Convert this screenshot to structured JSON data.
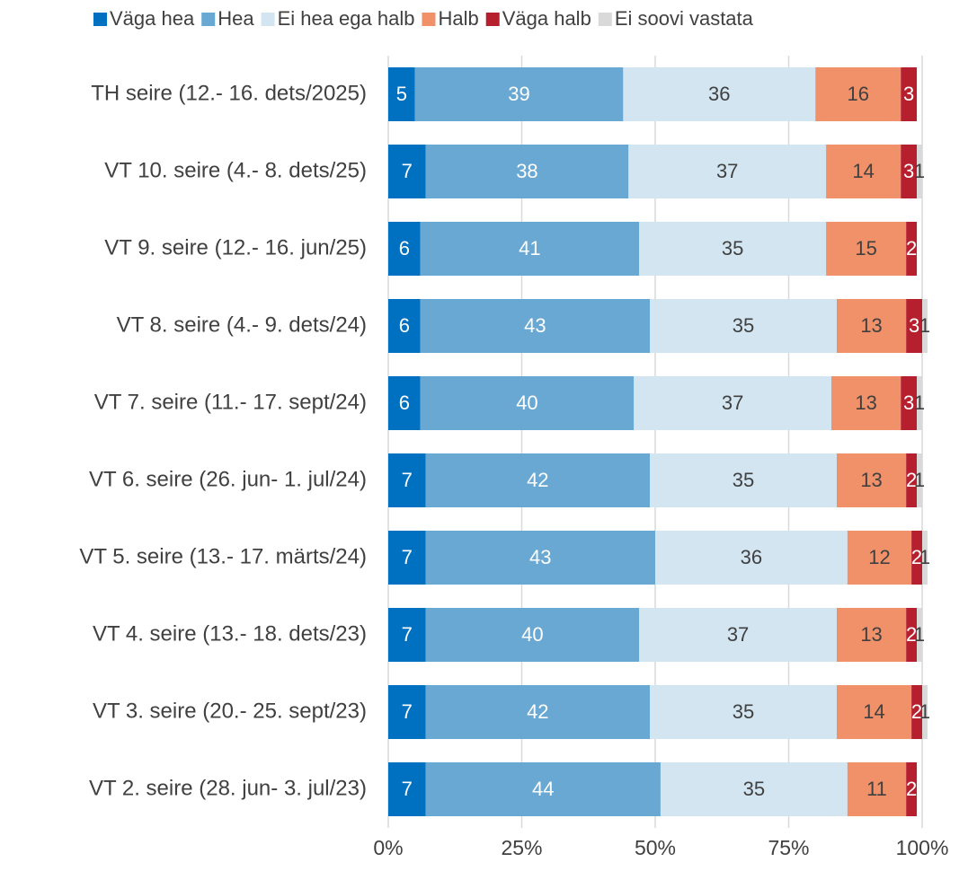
{
  "chart_data": {
    "type": "stacked_bar_horizontal",
    "categories": [
      "TH seire (12.- 16. dets/2025)",
      "VT 10. seire (4.- 8. dets/25)",
      "VT 9. seire (12.- 16. jun/25)",
      "VT 8. seire (4.- 9. dets/24)",
      "VT 7. seire (11.- 17. sept/24)",
      "VT 6. seire (26. jun- 1. jul/24)",
      "VT 5. seire (13.- 17. märts/24)",
      "VT 4. seire (13.- 18. dets/23)",
      "VT 3. seire (20.- 25. sept/23)",
      "VT 2. seire (28. jun- 3. jul/23)"
    ],
    "series": [
      {
        "name": "Väga hea",
        "color": "#0070c0",
        "label_color": "#ffffff",
        "values": [
          5,
          7,
          6,
          6,
          6,
          7,
          7,
          7,
          7,
          7
        ]
      },
      {
        "name": "Hea",
        "color": "#69a8d2",
        "label_color": "#ffffff",
        "values": [
          39,
          38,
          41,
          43,
          40,
          42,
          43,
          40,
          42,
          44
        ]
      },
      {
        "name": "Ei hea ega halb",
        "color": "#d2e5f1",
        "label_color": "#404040",
        "values": [
          36,
          37,
          35,
          35,
          37,
          35,
          36,
          37,
          35,
          35
        ]
      },
      {
        "name": "Halb",
        "color": "#f0916a",
        "label_color": "#404040",
        "values": [
          16,
          14,
          15,
          13,
          13,
          13,
          12,
          13,
          14,
          11
        ]
      },
      {
        "name": "Väga halb",
        "color": "#b51f2e",
        "label_color": "#ffffff",
        "values": [
          3,
          3,
          2,
          3,
          3,
          2,
          2,
          2,
          2,
          2
        ]
      },
      {
        "name": "Ei soovi vastata",
        "color": "#d9d9d9",
        "label_color": "#404040",
        "values": [
          null,
          1,
          null,
          1,
          1,
          1,
          1,
          1,
          1,
          null
        ]
      }
    ],
    "xlim": [
      0,
      100
    ],
    "xticks": [
      {
        "value": 0,
        "label": "0%"
      },
      {
        "value": 25,
        "label": "25%"
      },
      {
        "value": 50,
        "label": "50%"
      },
      {
        "value": 75,
        "label": "75%"
      },
      {
        "value": 100,
        "label": "100%"
      }
    ],
    "grid": true,
    "legend": "top"
  }
}
